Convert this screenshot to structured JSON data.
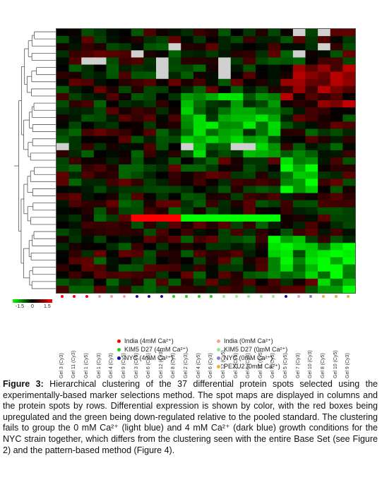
{
  "figure": {
    "chart_data": {
      "type": "heatmap",
      "columns": [
        "Gel 3 (Cy3)",
        "Gel 11 (Cy3)",
        "Gel 1 (Cy5)",
        "Gel 1 (Cy3)",
        "Gel 4 (Cy3)",
        "Gel 9 (Cy5)",
        "Gel 3 (Cy5)",
        "Gel 6 (Cy5)",
        "Gel 12 (Cy3)",
        "Gel 8 (Cy3)",
        "Gel 2 (Cy3)",
        "Gel 4 (Cy5)",
        "Gel 6 (Cy3)",
        "Gel 12 (Cy5)",
        "Gel 2 (Cy5)",
        "Gel 5 (Cy3)",
        "Gel 11 (Cy5)",
        "Gel 7 (Cy5)",
        "Gel 5 (Cy5)",
        "Gel 7 (Cy3)",
        "Gel 10 (Cy3)",
        "Gel 8 (Cy5)",
        "Gel 10 (Cy5)",
        "Gel 9 (Cy3)"
      ],
      "column_groups": [
        "india4",
        "india4",
        "india4",
        "india0",
        "india0",
        "india0",
        "nyc4",
        "nyc4",
        "nyc4",
        "kim5_4",
        "kim5_4",
        "kim5_4",
        "kim5_4",
        "kim5_0",
        "kim5_0",
        "kim5_0",
        "kim5_0",
        "kim5_0",
        "nyc4",
        "india0",
        "nyc0",
        "pexu2",
        "pexu2",
        "pexu2"
      ],
      "rows": 37,
      "color_scale": {
        "min": -1.5,
        "mid": 0,
        "max": 1.5,
        "low_color": "#00ff00",
        "mid_color": "#000000",
        "high_color": "#ff0000",
        "missing_color": "#d0d0d0"
      },
      "colorbar_ticks": [
        "-1.5",
        "0",
        "1.5"
      ]
    },
    "legend": [
      {
        "label": "India (4mM Ca²⁺)",
        "color": "#ff0000"
      },
      {
        "label": "India (0mM Ca²⁺)",
        "color": "#f4a0a0"
      },
      {
        "label": "KIM5 D27 (4mM Ca²⁺)",
        "color": "#22cc22"
      },
      {
        "label": "KIM5 D27 (0mM Ca²⁺)",
        "color": "#90ee90"
      },
      {
        "label": "NYC (4mM Ca²⁺)",
        "color": "#1010a0"
      },
      {
        "label": "NYC (0mM Ca²⁺)",
        "color": "#8080e0"
      },
      {
        "label": "PEXU2 (0mM Ca²⁺)",
        "color": "#f0b040"
      }
    ],
    "group_colors": {
      "india4": "#ff0000",
      "india0": "#f4a0a0",
      "kim5_4": "#22cc22",
      "kim5_0": "#90ee90",
      "nyc4": "#1010a0",
      "nyc0": "#8080e0",
      "pexu2": "#f0b040"
    }
  },
  "caption": {
    "label": "Figure 3:",
    "text": " Hierarchical clustering of the 37 differential protein spots selected using the experimentally-based marker selections method. The spot maps are displayed in columns and the protein spots by rows. Differential expression is shown by color, with the red boxes being upregulated and the green being down-regulated relative to the pooled standard. The clustering fails to group the 0 mM Ca²⁺ (light blue) and 4 mM Ca²⁺ (dark blue) growth conditions for the NYC strain together, which differs from the clustering seen with the entire Base Set (see Figure 2) and the pattern-based method (Figure 4)."
  }
}
